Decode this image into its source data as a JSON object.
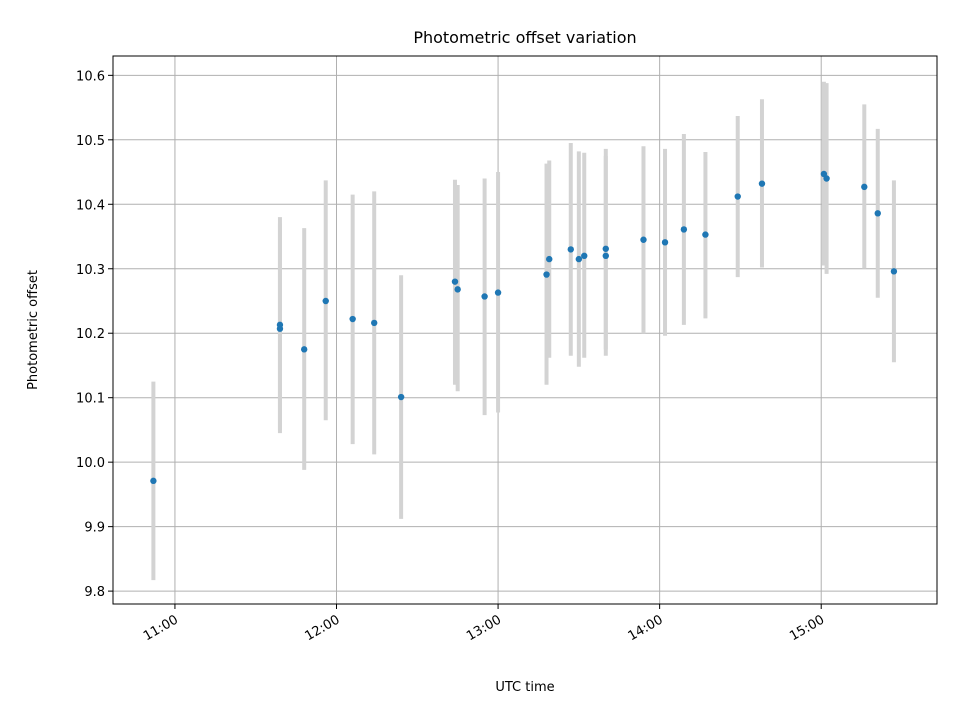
{
  "chart_data": {
    "type": "scatter",
    "title": "Photometric offset variation",
    "xlabel": "UTC time",
    "ylabel": "Photometric offset",
    "xlim": [
      "10:37",
      "15:43"
    ],
    "ylim": [
      9.78,
      10.63
    ],
    "xticks": [
      "11:00",
      "12:00",
      "13:00",
      "14:00",
      "15:00"
    ],
    "yticks": [
      "9.8",
      "9.9",
      "10.0",
      "10.1",
      "10.2",
      "10.3",
      "10.4",
      "10.5",
      "10.6"
    ],
    "grid": true,
    "errorbar_color": "#d3d3d3",
    "point_color": "#1f77b4",
    "points": [
      {
        "x": "10:52",
        "y": 9.971,
        "lo": 9.817,
        "hi": 10.125
      },
      {
        "x": "11:39",
        "y": 10.213,
        "lo": 10.05,
        "hi": 10.38
      },
      {
        "x": "11:39",
        "y": 10.207,
        "lo": 10.045,
        "hi": 10.37
      },
      {
        "x": "11:48",
        "y": 10.175,
        "lo": 9.988,
        "hi": 10.363
      },
      {
        "x": "11:56",
        "y": 10.25,
        "lo": 10.065,
        "hi": 10.437
      },
      {
        "x": "12:06",
        "y": 10.222,
        "lo": 10.028,
        "hi": 10.415
      },
      {
        "x": "12:14",
        "y": 10.216,
        "lo": 10.012,
        "hi": 10.42
      },
      {
        "x": "12:24",
        "y": 10.101,
        "lo": 9.912,
        "hi": 10.29
      },
      {
        "x": "12:44",
        "y": 10.28,
        "lo": 10.12,
        "hi": 10.438
      },
      {
        "x": "12:45",
        "y": 10.268,
        "lo": 10.11,
        "hi": 10.43
      },
      {
        "x": "12:55",
        "y": 10.257,
        "lo": 10.073,
        "hi": 10.44
      },
      {
        "x": "13:00",
        "y": 10.263,
        "lo": 10.077,
        "hi": 10.45
      },
      {
        "x": "13:18",
        "y": 10.291,
        "lo": 10.12,
        "hi": 10.463
      },
      {
        "x": "13:19",
        "y": 10.315,
        "lo": 10.162,
        "hi": 10.468
      },
      {
        "x": "13:27",
        "y": 10.33,
        "lo": 10.165,
        "hi": 10.495
      },
      {
        "x": "13:30",
        "y": 10.315,
        "lo": 10.148,
        "hi": 10.482
      },
      {
        "x": "13:32",
        "y": 10.32,
        "lo": 10.162,
        "hi": 10.48
      },
      {
        "x": "13:40",
        "y": 10.331,
        "lo": 10.175,
        "hi": 10.486
      },
      {
        "x": "13:40",
        "y": 10.32,
        "lo": 10.165,
        "hi": 10.475
      },
      {
        "x": "13:54",
        "y": 10.345,
        "lo": 10.2,
        "hi": 10.49
      },
      {
        "x": "14:02",
        "y": 10.341,
        "lo": 10.196,
        "hi": 10.486
      },
      {
        "x": "14:09",
        "y": 10.361,
        "lo": 10.213,
        "hi": 10.509
      },
      {
        "x": "14:17",
        "y": 10.353,
        "lo": 10.223,
        "hi": 10.481
      },
      {
        "x": "14:29",
        "y": 10.412,
        "lo": 10.287,
        "hi": 10.537
      },
      {
        "x": "14:38",
        "y": 10.432,
        "lo": 10.302,
        "hi": 10.563
      },
      {
        "x": "15:01",
        "y": 10.447,
        "lo": 10.305,
        "hi": 10.59
      },
      {
        "x": "15:02",
        "y": 10.44,
        "lo": 10.292,
        "hi": 10.588
      },
      {
        "x": "15:16",
        "y": 10.427,
        "lo": 10.3,
        "hi": 10.555
      },
      {
        "x": "15:21",
        "y": 10.386,
        "lo": 10.255,
        "hi": 10.517
      },
      {
        "x": "15:27",
        "y": 10.296,
        "lo": 10.155,
        "hi": 10.437
      }
    ]
  }
}
